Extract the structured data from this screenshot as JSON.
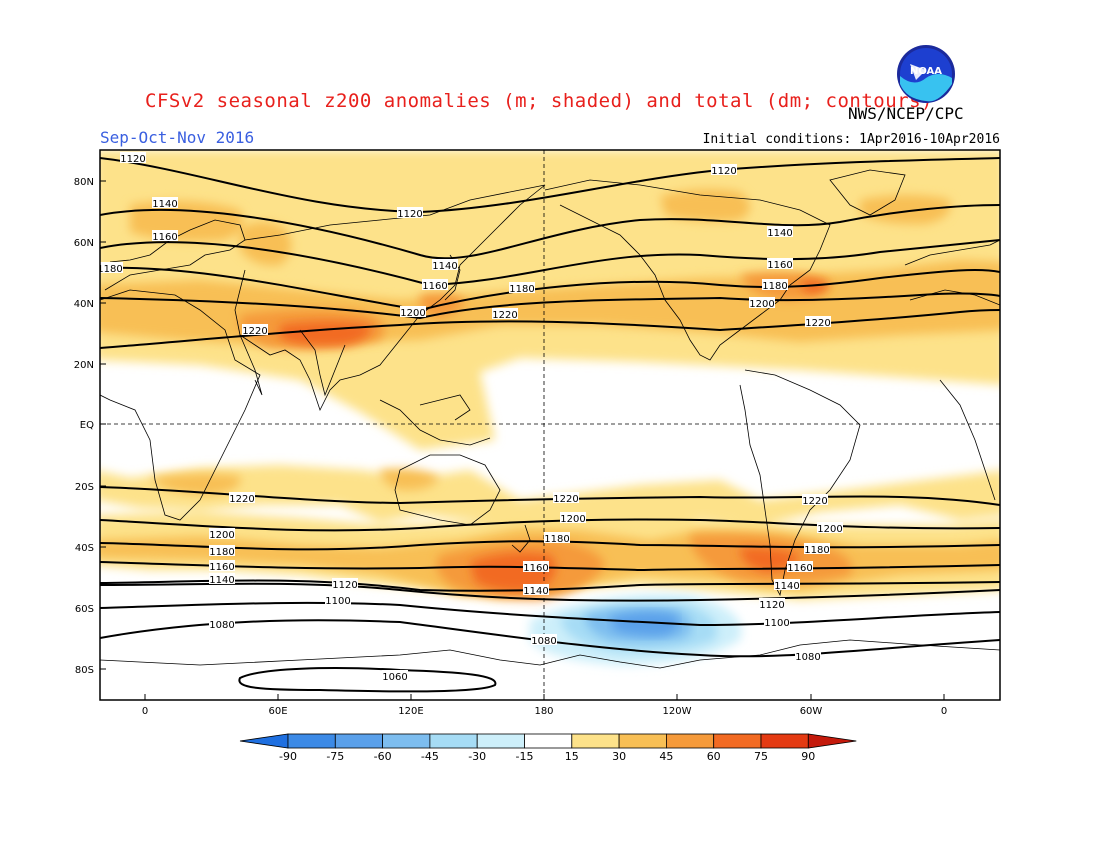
{
  "title": "CFSv2 seasonal z200 anomalies (m; shaded) and total (dm; contours)",
  "agency": "NWS/NCEP/CPC",
  "season": "Sep-Oct-Nov 2016",
  "initial_conditions": "Initial conditions: 1Apr2016-10Apr2016",
  "logo_text": "NOAA",
  "lat_labels": [
    "80N",
    "60N",
    "40N",
    "20N",
    "EQ",
    "20S",
    "40S",
    "60S",
    "80S"
  ],
  "lon_labels": [
    "0",
    "60E",
    "120E",
    "180",
    "120W",
    "60W",
    "0"
  ],
  "colorbar": {
    "labels": [
      "-90",
      "-75",
      "-60",
      "-45",
      "-30",
      "-15",
      "15",
      "30",
      "45",
      "60",
      "75",
      "90"
    ],
    "colors": [
      "#1e6fe0",
      "#3c8ae6",
      "#5aa0ea",
      "#7dbdef",
      "#a6dcf5",
      "#cdeffa",
      "#ffffff",
      "#fde28a",
      "#f8bf55",
      "#f59a3a",
      "#f26a22",
      "#e43a12",
      "#c41a0c"
    ]
  },
  "contour_labels": [
    {
      "text": "1120"
    },
    {
      "text": "1120"
    },
    {
      "text": "1120"
    },
    {
      "text": "1140"
    },
    {
      "text": "1140"
    },
    {
      "text": "1140"
    },
    {
      "text": "1160"
    },
    {
      "text": "1160"
    },
    {
      "text": "1160"
    },
    {
      "text": "1180"
    },
    {
      "text": "1180"
    },
    {
      "text": "1180"
    },
    {
      "text": "1200"
    },
    {
      "text": "1200"
    },
    {
      "text": "1220"
    },
    {
      "text": "1220"
    },
    {
      "text": "1220"
    },
    {
      "text": "1220"
    },
    {
      "text": "1220"
    },
    {
      "text": "1220"
    },
    {
      "text": "1200"
    },
    {
      "text": "1200"
    },
    {
      "text": "1200"
    },
    {
      "text": "1180"
    },
    {
      "text": "1180"
    },
    {
      "text": "1180"
    },
    {
      "text": "1160"
    },
    {
      "text": "1160"
    },
    {
      "text": "1160"
    },
    {
      "text": "1140"
    },
    {
      "text": "1140"
    },
    {
      "text": "1140"
    },
    {
      "text": "1120"
    },
    {
      "text": "1120"
    },
    {
      "text": "1100"
    },
    {
      "text": "1100"
    },
    {
      "text": "1080"
    },
    {
      "text": "1080"
    },
    {
      "text": "1080"
    },
    {
      "text": "1060"
    }
  ]
}
